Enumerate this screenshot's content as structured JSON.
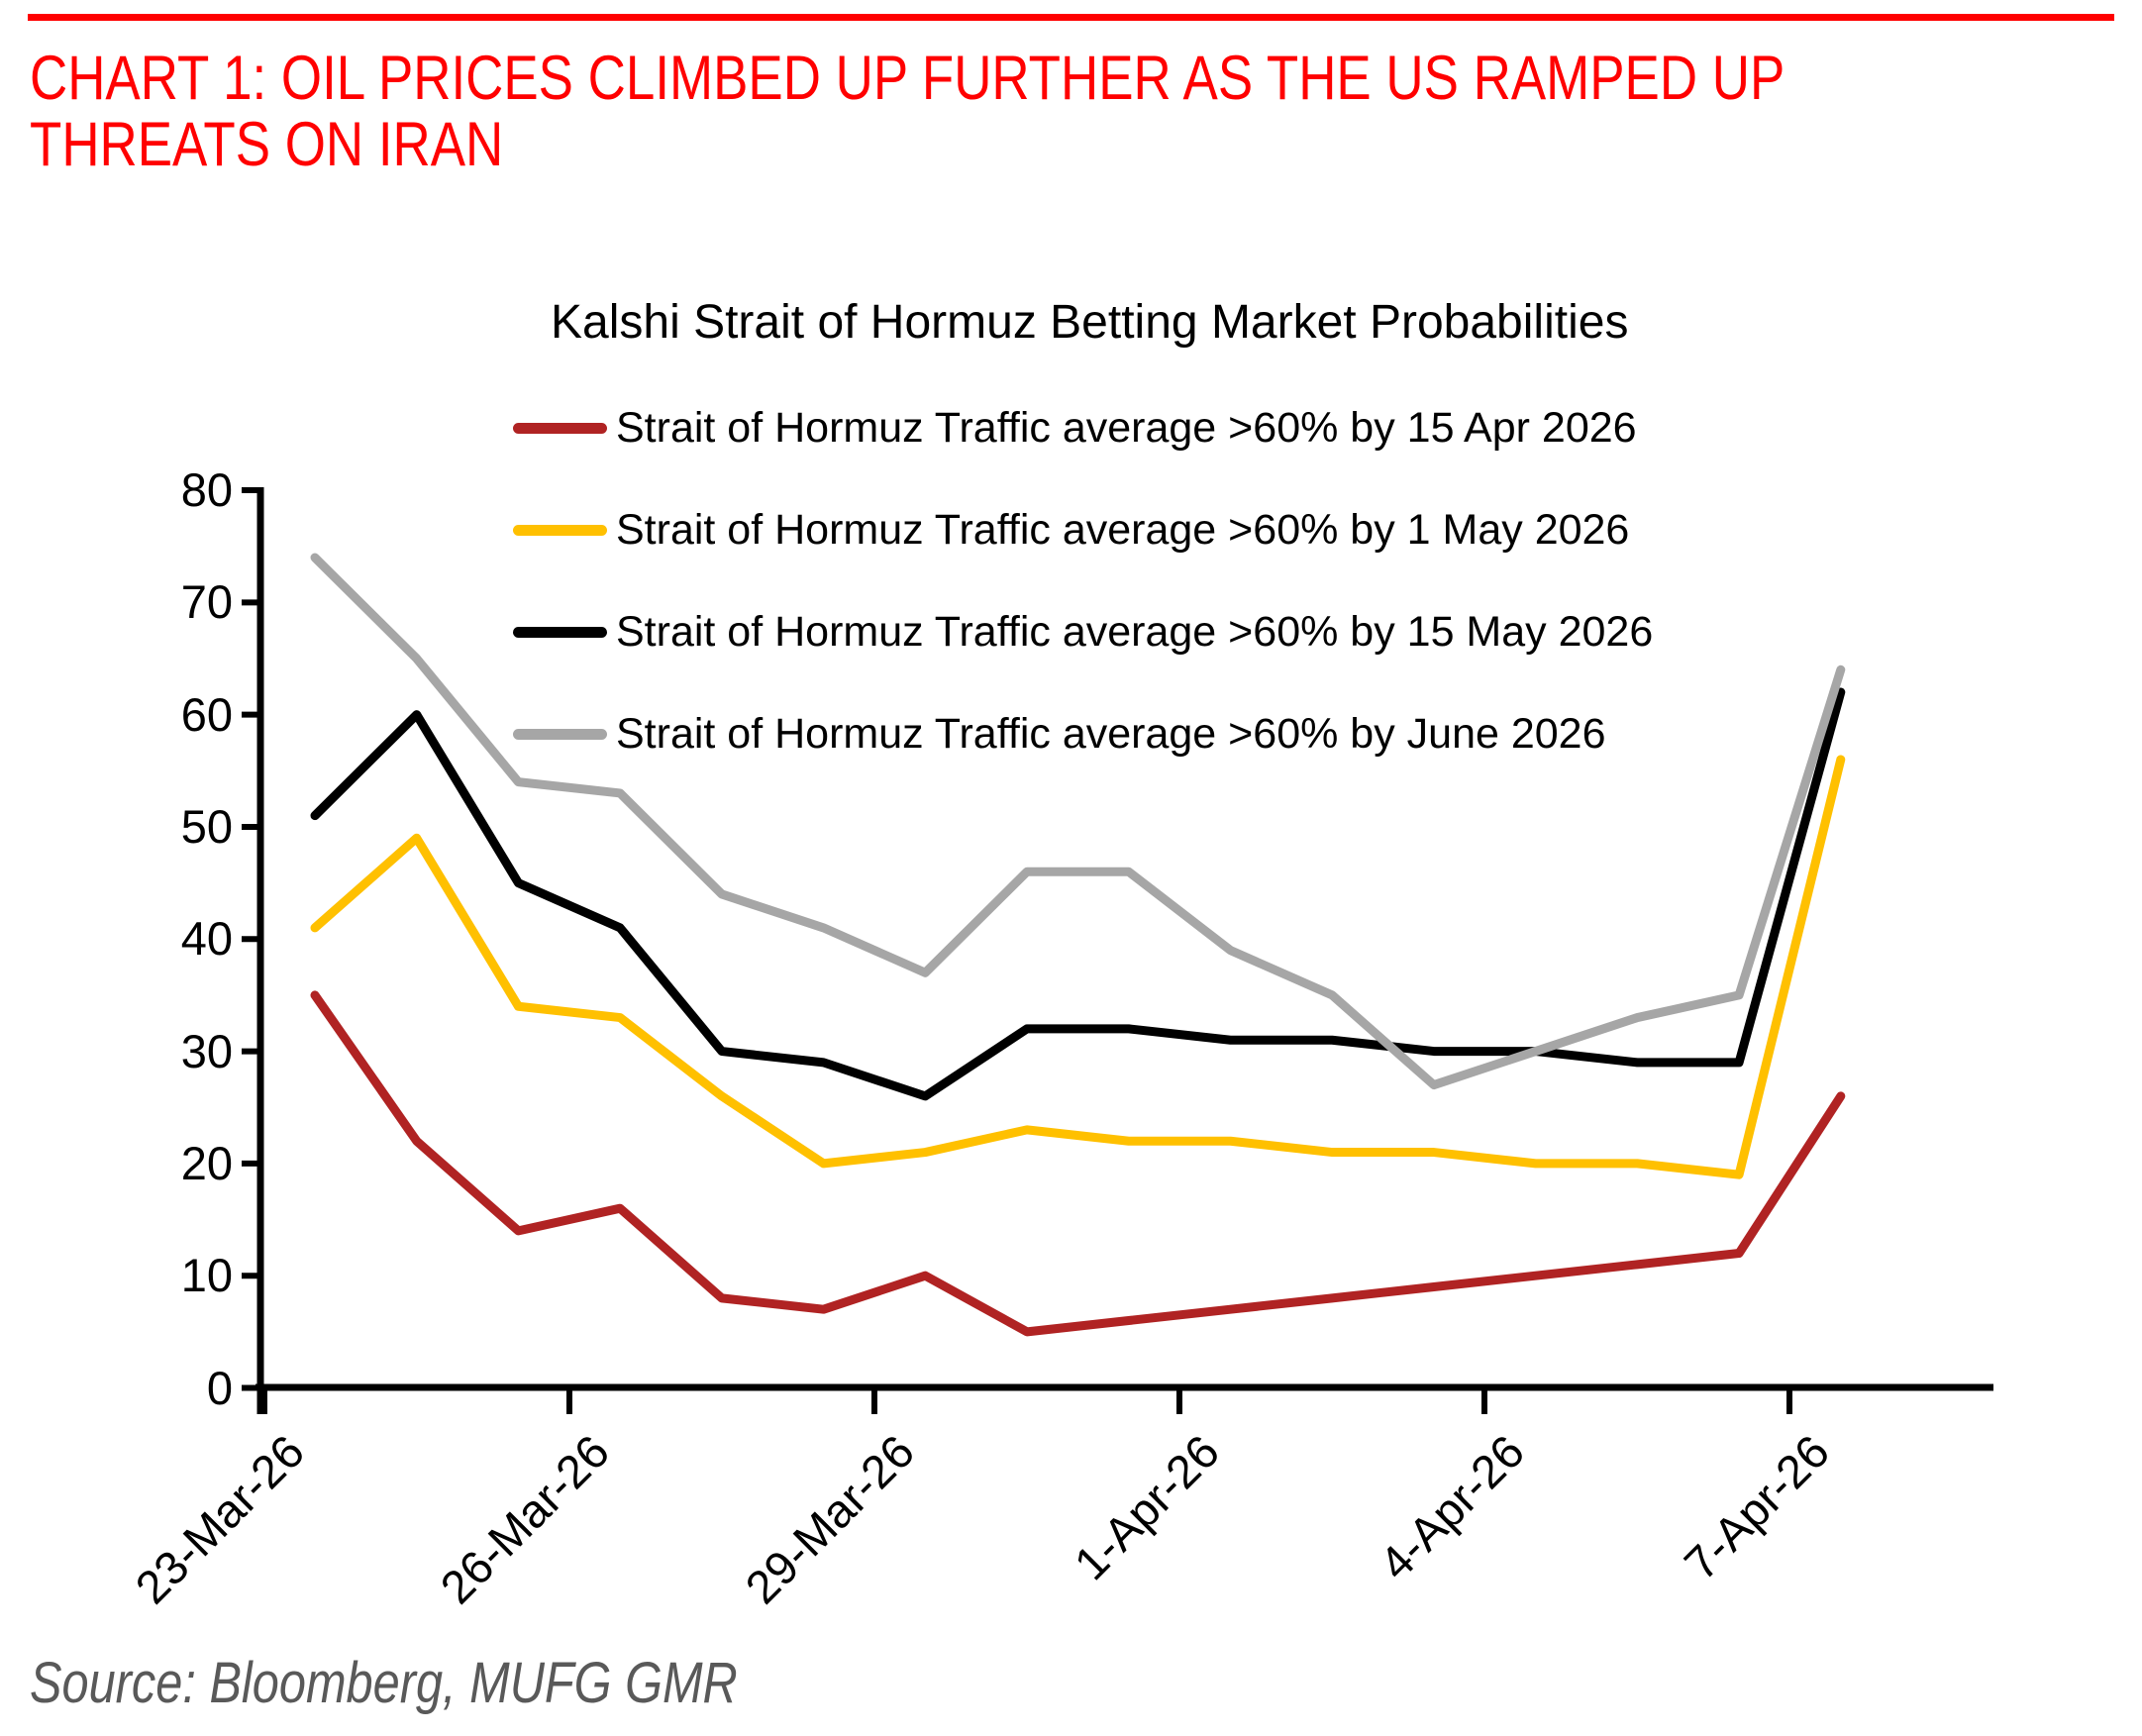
{
  "header": {
    "title": "CHART 1: OIL PRICES CLIMBED UP FURTHER AS THE US RAMPED UP THREATS ON IRAN",
    "accent_color": "#FF0000"
  },
  "chart_data": {
    "type": "line",
    "title": "Kalshi Strait of Hormuz Betting Market Probabilities",
    "x": [
      "23-Mar-26",
      "24-Mar-26",
      "25-Mar-26",
      "26-Mar-26",
      "27-Mar-26",
      "28-Mar-26",
      "29-Mar-26",
      "30-Mar-26",
      "31-Mar-26",
      "1-Apr-26",
      "2-Apr-26",
      "3-Apr-26",
      "4-Apr-26",
      "5-Apr-26",
      "6-Apr-26",
      "7-Apr-26"
    ],
    "x_tick_labels": [
      "23-Mar-26",
      "26-Mar-26",
      "29-Mar-26",
      "1-Apr-26",
      "4-Apr-26",
      "7-Apr-26"
    ],
    "y_ticks": [
      0,
      10,
      20,
      30,
      40,
      50,
      60,
      70,
      80
    ],
    "ylim": [
      0,
      80
    ],
    "grid": false,
    "legend_position": "inside-top-left",
    "xlabel": "",
    "ylabel": "",
    "series": [
      {
        "name": "Strait of Hormuz Traffic average >60% by 15 Apr 2026",
        "color": "#B02323",
        "values": [
          35,
          22,
          14,
          16,
          8,
          7,
          10,
          5,
          6,
          7,
          8,
          9,
          10,
          11,
          12,
          26
        ]
      },
      {
        "name": "Strait of Hormuz Traffic average >60% by 1 May 2026",
        "color": "#FFC000",
        "values": [
          41,
          49,
          34,
          33,
          26,
          20,
          21,
          23,
          22,
          22,
          21,
          21,
          20,
          20,
          19,
          56
        ]
      },
      {
        "name": "Strait of Hormuz Traffic average >60% by 15 May 2026",
        "color": "#000000",
        "values": [
          51,
          60,
          45,
          41,
          30,
          29,
          26,
          32,
          32,
          31,
          31,
          30,
          30,
          29,
          29,
          62
        ]
      },
      {
        "name": "Strait of Hormuz Traffic average >60% by June 2026",
        "color": "#A6A6A6",
        "values": [
          74,
          65,
          54,
          53,
          44,
          41,
          37,
          46,
          46,
          39,
          35,
          27,
          30,
          33,
          35,
          64
        ]
      }
    ]
  },
  "axis_color": "#000000",
  "footer": {
    "source": "Source: Bloomberg, MUFG GMR"
  }
}
